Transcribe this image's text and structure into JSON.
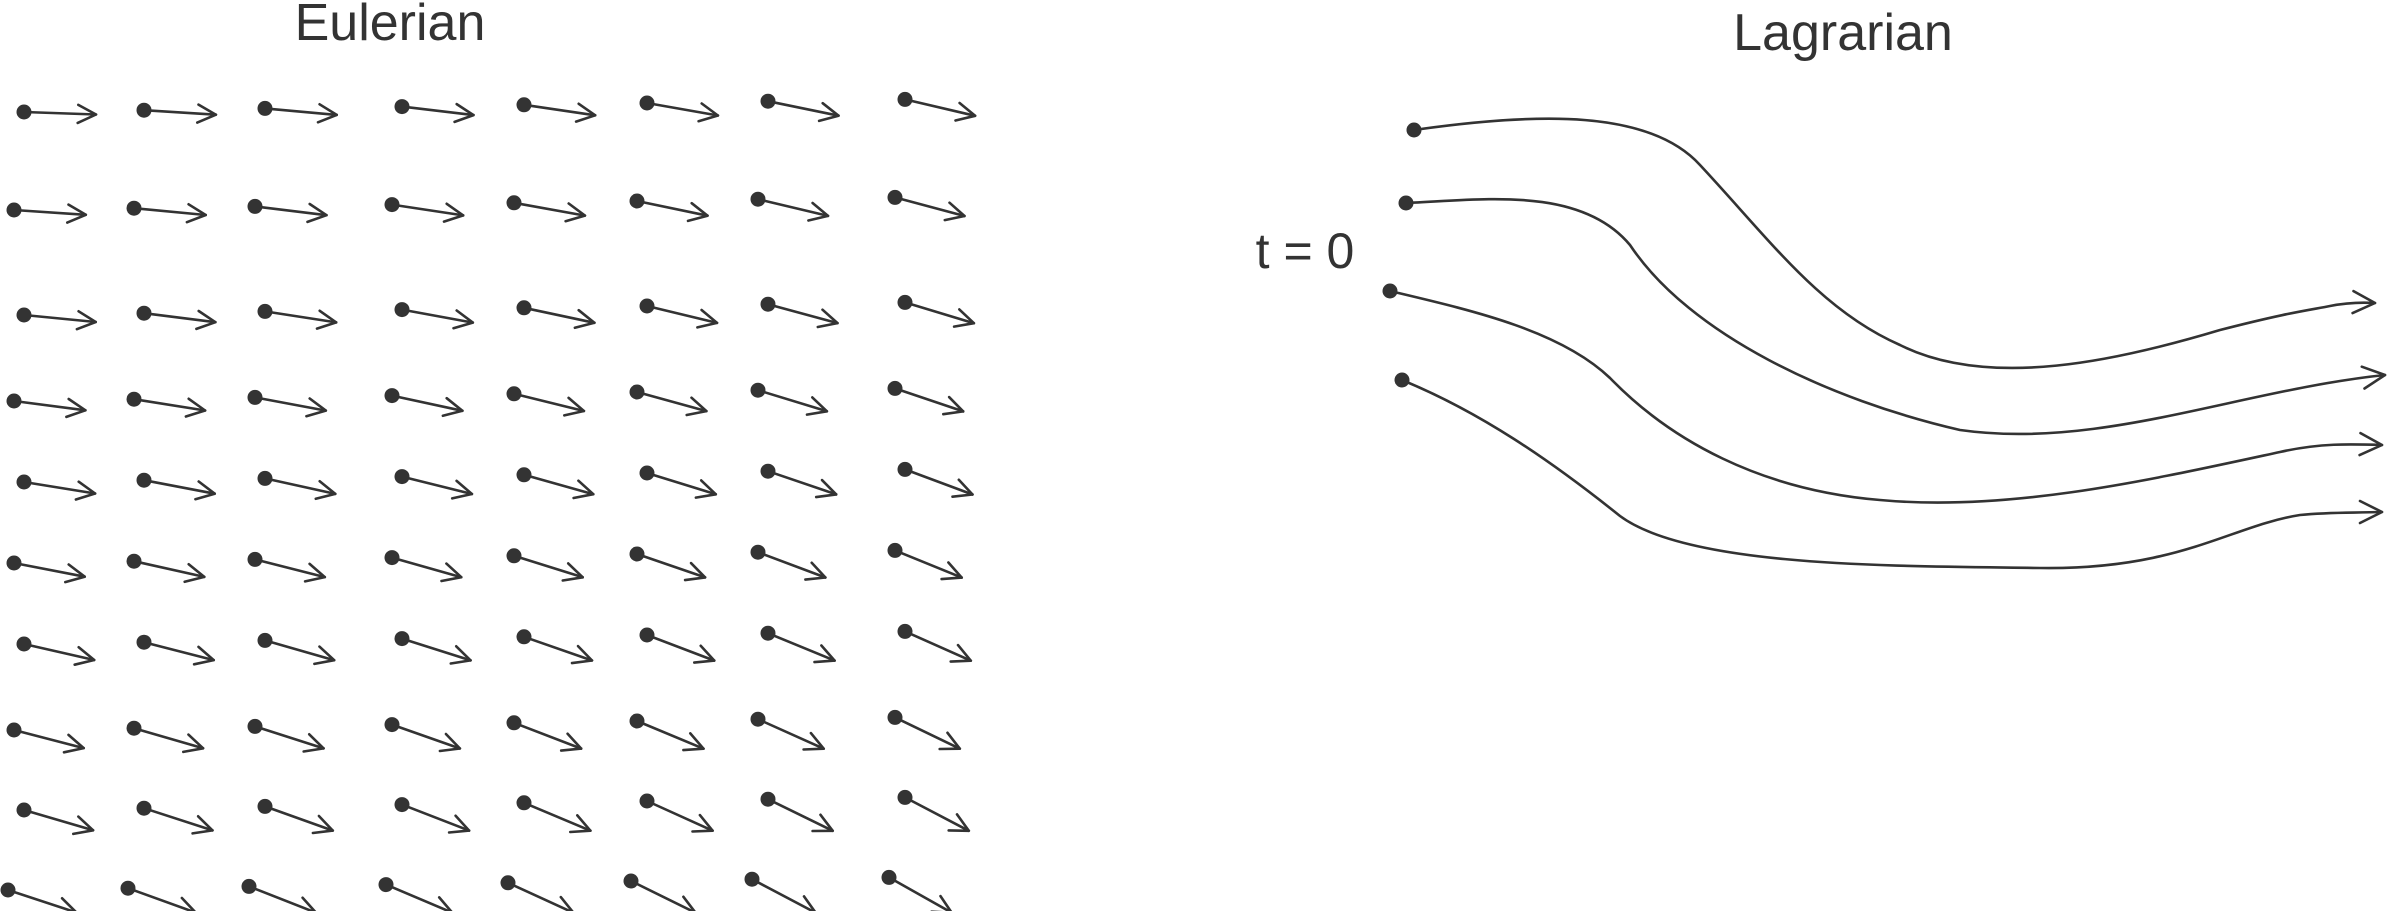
{
  "eulerian": {
    "title": "Eulerian",
    "rows": 10,
    "cols": 8
  },
  "lagrangian": {
    "title": "Lagrarian",
    "start_label": "t = 0",
    "pathline_count": 4
  },
  "colors": {
    "ink": "#333333",
    "background": "#ffffff"
  }
}
